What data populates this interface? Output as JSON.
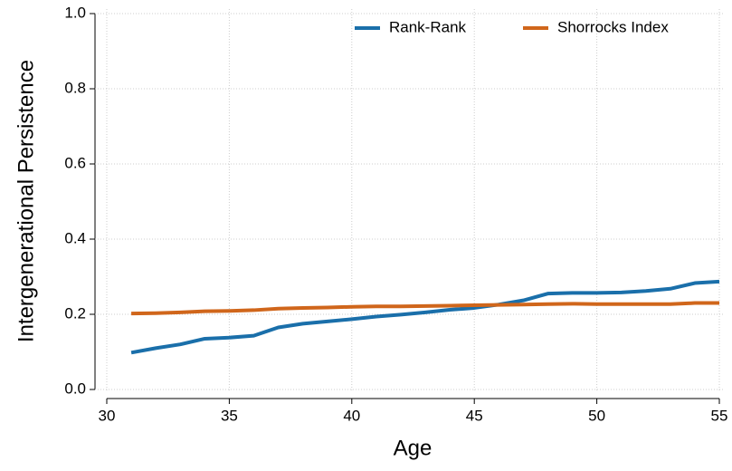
{
  "chart_data": {
    "type": "line",
    "x_label": "Age",
    "y_label": "Intergenerational Persistence",
    "x": [
      31,
      32,
      33,
      34,
      35,
      36,
      37,
      38,
      39,
      40,
      41,
      42,
      43,
      44,
      45,
      46,
      47,
      48,
      49,
      50,
      51,
      52,
      53,
      54,
      55
    ],
    "series": [
      {
        "name": "Rank-Rank",
        "color": "#1a6faa",
        "values": [
          0.098,
          0.11,
          0.12,
          0.135,
          0.138,
          0.143,
          0.165,
          0.175,
          0.181,
          0.187,
          0.194,
          0.199,
          0.205,
          0.212,
          0.217,
          0.226,
          0.237,
          0.255,
          0.257,
          0.257,
          0.258,
          0.262,
          0.268,
          0.283,
          0.287
        ]
      },
      {
        "name": "Shorrocks Index",
        "color": "#d0661b",
        "values": [
          0.202,
          0.203,
          0.205,
          0.208,
          0.209,
          0.211,
          0.215,
          0.217,
          0.218,
          0.22,
          0.221,
          0.221,
          0.222,
          0.223,
          0.224,
          0.225,
          0.226,
          0.227,
          0.228,
          0.227,
          0.227,
          0.227,
          0.227,
          0.23,
          0.23
        ]
      }
    ],
    "xlim": [
      30,
      55
    ],
    "xticks": [
      30,
      35,
      40,
      45,
      50,
      55
    ],
    "ylim": [
      0,
      1
    ],
    "yticks": [
      {
        "value": 0,
        "label": "0.0"
      },
      0.2,
      0.4,
      0.6,
      0.8,
      {
        "value": 1,
        "label": "1.0"
      }
    ],
    "grid": true,
    "legend": "top-right"
  }
}
